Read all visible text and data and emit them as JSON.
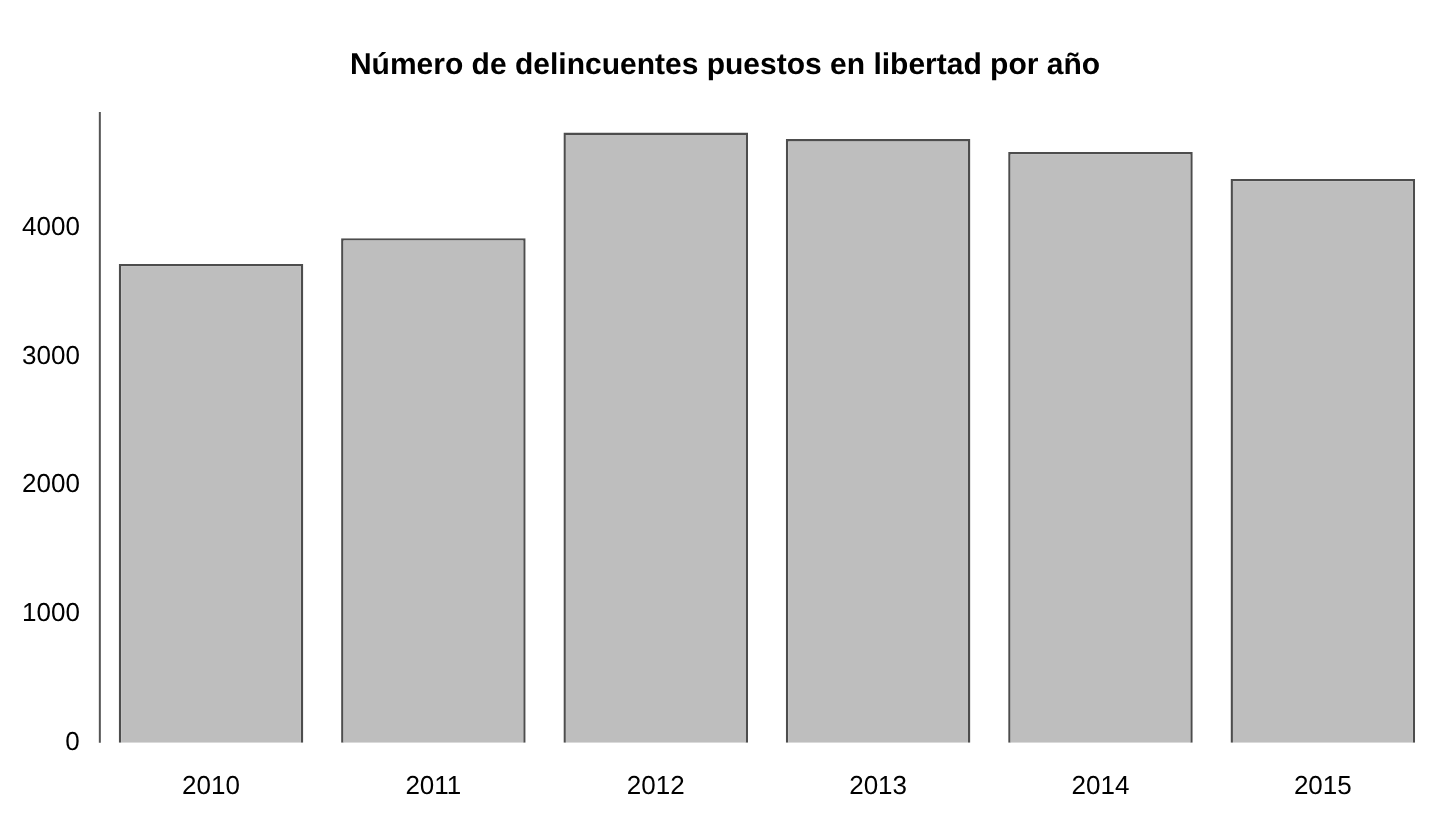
{
  "chart_data": {
    "type": "bar",
    "title": "Número de delincuentes puestos en libertad por año",
    "categories": [
      "2010",
      "2011",
      "2012",
      "2013",
      "2014",
      "2015"
    ],
    "values": [
      3720,
      3920,
      4740,
      4690,
      4590,
      4380
    ],
    "color": "#bebebe",
    "ylim": [
      0,
      4900
    ],
    "yticks": [
      0,
      1000,
      2000,
      3000,
      4000
    ],
    "grid": false,
    "legend": false
  }
}
